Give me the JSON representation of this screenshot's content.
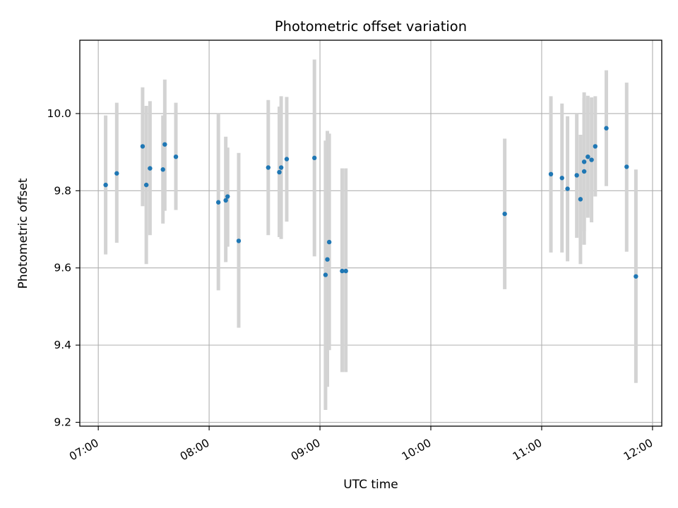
{
  "chart_data": {
    "type": "scatter",
    "title": "Photometric offset variation",
    "xlabel": "UTC time",
    "ylabel": "Photometric offset",
    "xlim": [
      "06:50",
      "12:05"
    ],
    "ylim": [
      9.19,
      10.19
    ],
    "x_ticks": [
      "07:00",
      "08:00",
      "09:00",
      "10:00",
      "11:00",
      "12:00"
    ],
    "y_ticks": [
      9.2,
      9.4,
      9.6,
      9.8,
      10.0
    ],
    "y_tick_labels": [
      "9.2",
      "9.4",
      "9.6",
      "9.8",
      "10.0"
    ],
    "grid": true,
    "colors": {
      "points": "#1f77b4",
      "error_bars": "#d3d3d3",
      "grid": "#b0b0b0"
    },
    "series": [
      {
        "points": [
          {
            "x": "07:04",
            "y": 9.815,
            "ylow": 9.635,
            "yhigh": 9.995
          },
          {
            "x": "07:10",
            "y": 9.845,
            "ylow": 9.665,
            "yhigh": 10.028
          },
          {
            "x": "07:24",
            "y": 9.915,
            "ylow": 9.76,
            "yhigh": 10.068
          },
          {
            "x": "07:26",
            "y": 9.815,
            "ylow": 9.61,
            "yhigh": 10.02
          },
          {
            "x": "07:28",
            "y": 9.858,
            "ylow": 9.685,
            "yhigh": 10.032
          },
          {
            "x": "07:35",
            "y": 9.855,
            "ylow": 9.715,
            "yhigh": 9.995
          },
          {
            "x": "07:36",
            "y": 9.92,
            "ylow": 9.748,
            "yhigh": 10.088
          },
          {
            "x": "07:42",
            "y": 9.888,
            "ylow": 9.75,
            "yhigh": 10.028
          },
          {
            "x": "08:05",
            "y": 9.77,
            "ylow": 9.542,
            "yhigh": 10.0
          },
          {
            "x": "08:09",
            "y": 9.775,
            "ylow": 9.615,
            "yhigh": 9.94
          },
          {
            "x": "08:10",
            "y": 9.785,
            "ylow": 9.655,
            "yhigh": 9.912
          },
          {
            "x": "08:16",
            "y": 9.67,
            "ylow": 9.445,
            "yhigh": 9.898
          },
          {
            "x": "08:32",
            "y": 9.86,
            "ylow": 9.685,
            "yhigh": 10.035
          },
          {
            "x": "08:38",
            "y": 9.848,
            "ylow": 9.68,
            "yhigh": 10.018
          },
          {
            "x": "08:39",
            "y": 9.86,
            "ylow": 9.675,
            "yhigh": 10.045
          },
          {
            "x": "08:42",
            "y": 9.882,
            "ylow": 9.72,
            "yhigh": 10.043
          },
          {
            "x": "08:57",
            "y": 9.885,
            "ylow": 9.63,
            "yhigh": 10.14
          },
          {
            "x": "09:03",
            "y": 9.582,
            "ylow": 9.232,
            "yhigh": 9.93
          },
          {
            "x": "09:04",
            "y": 9.622,
            "ylow": 9.292,
            "yhigh": 9.955
          },
          {
            "x": "09:05",
            "y": 9.667,
            "ylow": 9.387,
            "yhigh": 9.948
          },
          {
            "x": "09:12",
            "y": 9.592,
            "ylow": 9.33,
            "yhigh": 9.858
          },
          {
            "x": "09:14",
            "y": 9.592,
            "ylow": 9.33,
            "yhigh": 9.858
          },
          {
            "x": "10:40",
            "y": 9.74,
            "ylow": 9.545,
            "yhigh": 9.935
          },
          {
            "x": "11:05",
            "y": 9.843,
            "ylow": 9.64,
            "yhigh": 10.045
          },
          {
            "x": "11:11",
            "y": 9.833,
            "ylow": 9.64,
            "yhigh": 10.026
          },
          {
            "x": "11:14",
            "y": 9.805,
            "ylow": 9.617,
            "yhigh": 9.993
          },
          {
            "x": "11:19",
            "y": 9.84,
            "ylow": 9.678,
            "yhigh": 10.0
          },
          {
            "x": "11:21",
            "y": 9.778,
            "ylow": 9.61,
            "yhigh": 9.945
          },
          {
            "x": "11:23",
            "y": 9.85,
            "ylow": 9.66,
            "yhigh": 10.04
          },
          {
            "x": "11:23",
            "y": 9.875,
            "ylow": 9.695,
            "yhigh": 10.055
          },
          {
            "x": "11:25",
            "y": 9.888,
            "ylow": 9.73,
            "yhigh": 10.046
          },
          {
            "x": "11:27",
            "y": 9.88,
            "ylow": 9.718,
            "yhigh": 10.042
          },
          {
            "x": "11:29",
            "y": 9.915,
            "ylow": 9.785,
            "yhigh": 10.045
          },
          {
            "x": "11:35",
            "y": 9.962,
            "ylow": 9.812,
            "yhigh": 10.112
          },
          {
            "x": "11:46",
            "y": 9.862,
            "ylow": 9.642,
            "yhigh": 10.08
          },
          {
            "x": "11:51",
            "y": 9.578,
            "ylow": 9.302,
            "yhigh": 9.855
          }
        ]
      }
    ]
  }
}
